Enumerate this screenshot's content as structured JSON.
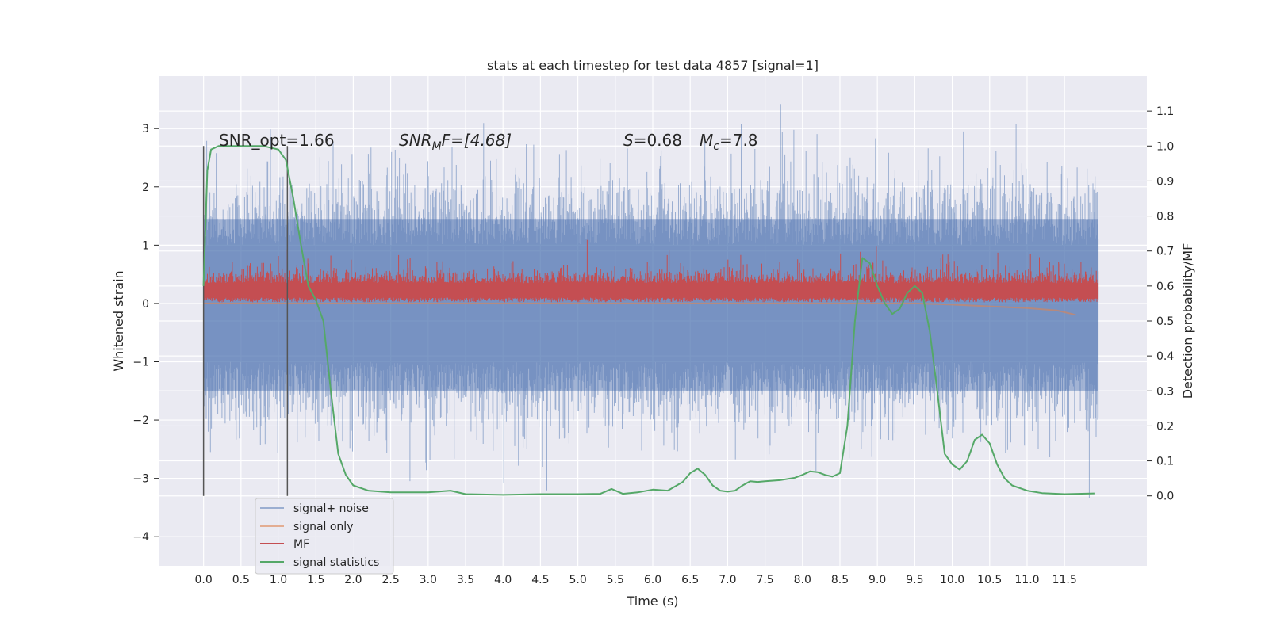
{
  "chart_data": {
    "type": "line",
    "title": "stats at each timestep for test data 4857 [signal=1]",
    "xlabel": "Time (s)",
    "ylabel": "Whitened strain",
    "y2label": "Detection probability/MF",
    "xlim": [
      -0.6,
      12.6
    ],
    "ylim": [
      -4.5,
      3.9
    ],
    "y2lim": [
      -0.2,
      1.2
    ],
    "xticks": [
      0.0,
      0.5,
      1.0,
      1.5,
      2.0,
      2.5,
      3.0,
      3.5,
      4.0,
      4.5,
      5.0,
      5.5,
      6.0,
      6.5,
      7.0,
      7.5,
      8.0,
      8.5,
      9.0,
      9.5,
      10.0,
      10.5,
      11.0,
      11.5
    ],
    "yticks": [
      3,
      2,
      1,
      0,
      -1,
      -2,
      -3,
      -4
    ],
    "y2ticks": [
      1.1,
      1.0,
      0.9,
      0.8,
      0.7,
      0.6,
      0.5,
      0.4,
      0.3,
      0.2,
      0.1,
      0.0
    ],
    "grid": true,
    "legend_position": "lower-left",
    "annotations": {
      "snr_opt": "SNR_opt=1.66",
      "snr_mf": "SNR",
      "snr_mf_sub": "M",
      "snr_mf_tail": "F=[4.68]",
      "s_label": "S",
      "s_value": "=0.68",
      "mc_label": "M",
      "mc_sub": "c",
      "mc_value": "=7.8"
    },
    "vlines": [
      0.0,
      1.12
    ],
    "series": [
      {
        "name": "signal+ noise",
        "color": "#4c72b0",
        "note_kind": "noisy_strain",
        "x_range": [
          0.0,
          11.95
        ],
        "envelope": [
          -1.9,
          1.9
        ]
      },
      {
        "name": "signal only",
        "color": "#dd8452",
        "x": [
          0.0,
          1.0,
          2.0,
          3.0,
          4.0,
          5.0,
          6.0,
          7.0,
          8.0,
          9.0,
          9.5,
          10.0,
          10.5,
          11.0,
          11.4,
          11.6,
          11.65
        ],
        "y": [
          0.0,
          0.0,
          0.0,
          0.0,
          0.0,
          0.0,
          0.0,
          0.0,
          0.0,
          0.0,
          0.0,
          -0.02,
          -0.05,
          -0.08,
          -0.12,
          -0.18,
          -0.2
        ]
      },
      {
        "name": "MF",
        "color": "#c44e52",
        "x_range": [
          0.0,
          11.95
        ],
        "baseline": 0.25,
        "envelope": [
          0.1,
          0.55
        ]
      },
      {
        "name": "signal statistics",
        "color": "#55a868",
        "axis": "right",
        "x": [
          0.0,
          0.05,
          0.1,
          0.2,
          0.4,
          0.6,
          0.8,
          1.0,
          1.1,
          1.2,
          1.3,
          1.4,
          1.5,
          1.6,
          1.7,
          1.8,
          1.9,
          2.0,
          2.2,
          2.5,
          3.0,
          3.3,
          3.5,
          4.0,
          4.5,
          5.0,
          5.3,
          5.45,
          5.6,
          5.8,
          6.0,
          6.2,
          6.4,
          6.5,
          6.6,
          6.7,
          6.8,
          6.9,
          7.0,
          7.1,
          7.2,
          7.3,
          7.4,
          7.5,
          7.7,
          7.9,
          8.0,
          8.1,
          8.2,
          8.3,
          8.4,
          8.5,
          8.6,
          8.7,
          8.8,
          8.9,
          9.0,
          9.1,
          9.2,
          9.3,
          9.4,
          9.5,
          9.6,
          9.7,
          9.8,
          9.9,
          10.0,
          10.1,
          10.2,
          10.3,
          10.4,
          10.5,
          10.6,
          10.7,
          10.8,
          11.0,
          11.2,
          11.5,
          11.9
        ],
        "y": [
          0.6,
          0.93,
          0.99,
          1.0,
          1.0,
          1.0,
          1.0,
          0.99,
          0.96,
          0.85,
          0.72,
          0.6,
          0.56,
          0.5,
          0.3,
          0.12,
          0.06,
          0.03,
          0.015,
          0.01,
          0.01,
          0.015,
          0.005,
          0.003,
          0.005,
          0.005,
          0.006,
          0.02,
          0.006,
          0.01,
          0.018,
          0.015,
          0.04,
          0.065,
          0.078,
          0.06,
          0.03,
          0.015,
          0.012,
          0.015,
          0.03,
          0.042,
          0.04,
          0.042,
          0.045,
          0.052,
          0.06,
          0.07,
          0.068,
          0.06,
          0.055,
          0.065,
          0.2,
          0.5,
          0.68,
          0.665,
          0.6,
          0.55,
          0.52,
          0.535,
          0.58,
          0.6,
          0.58,
          0.47,
          0.3,
          0.12,
          0.09,
          0.075,
          0.1,
          0.16,
          0.175,
          0.15,
          0.09,
          0.05,
          0.03,
          0.015,
          0.008,
          0.005,
          0.007
        ]
      }
    ]
  }
}
